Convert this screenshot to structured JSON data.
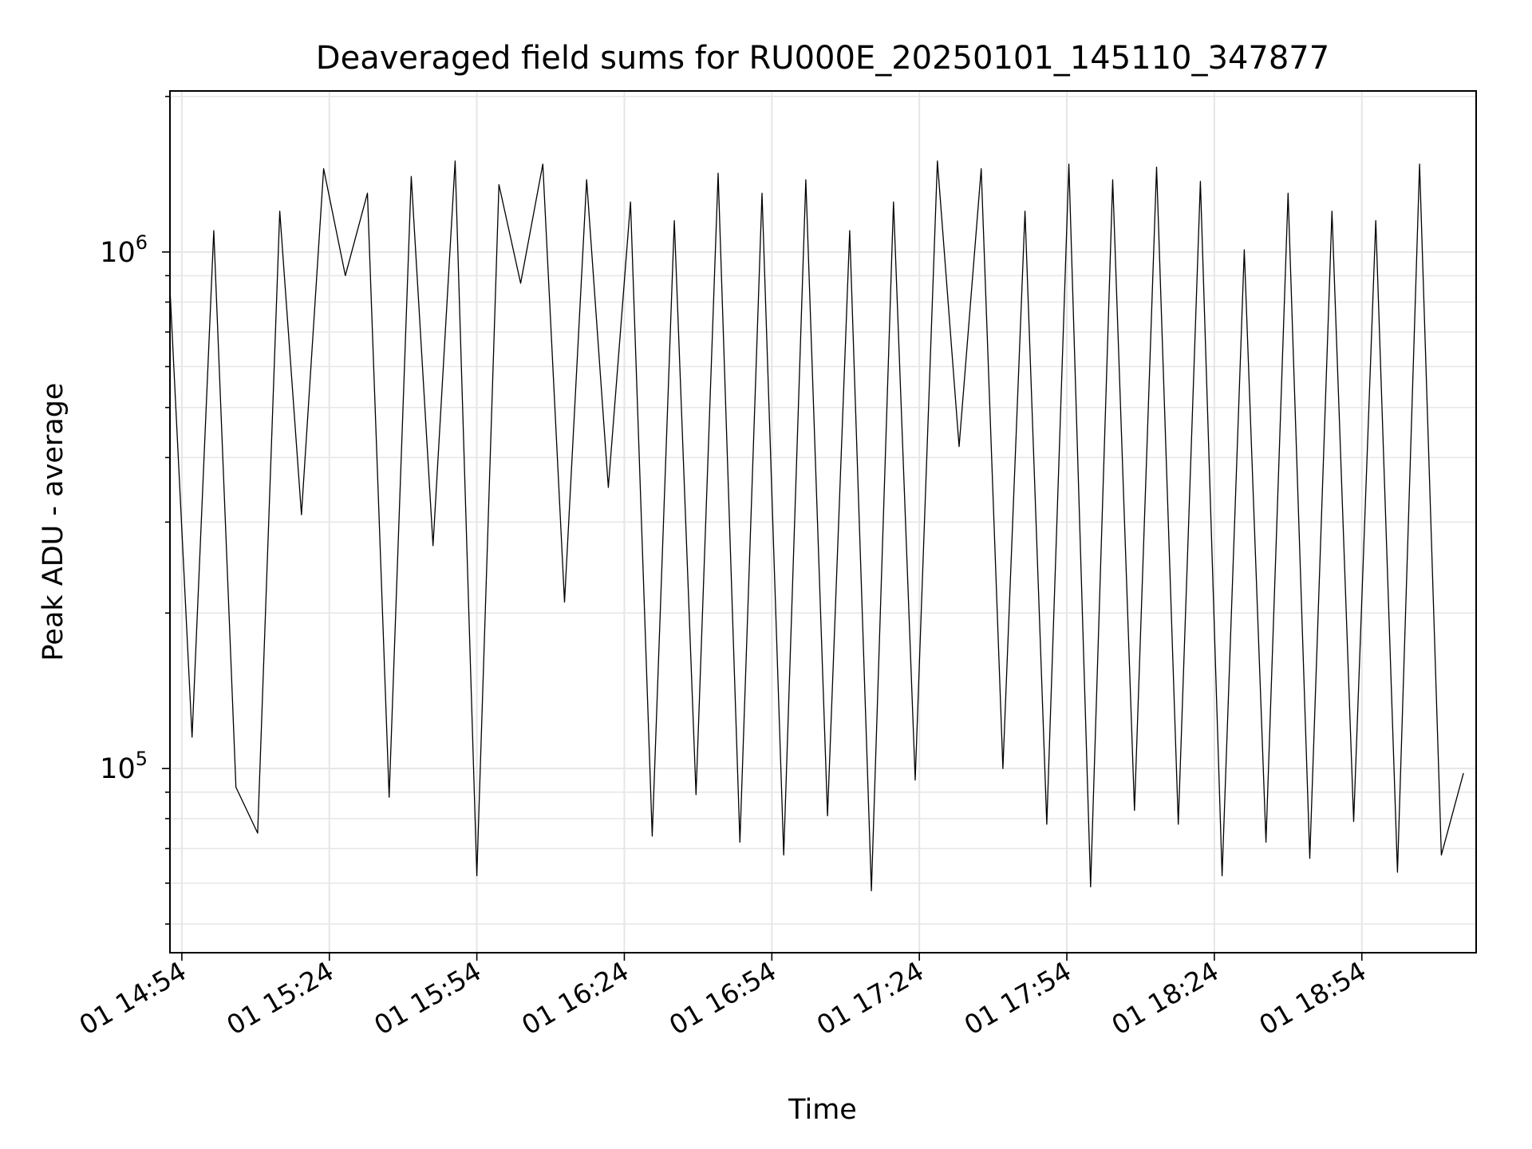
{
  "chart_data": {
    "type": "line",
    "title": "Deaveraged field sums for RU000E_20250101_145110_347877",
    "xlabel": "Time",
    "ylabel": "Peak ADU - average",
    "x_ticks": [
      "01 14:54",
      "01 15:24",
      "01 15:54",
      "01 16:24",
      "01 16:54",
      "01 17:24",
      "01 17:54",
      "01 18:24",
      "01 18:54"
    ],
    "y_ticks": [
      {
        "value": 100000,
        "base": "10",
        "exp": "5"
      },
      {
        "value": 1000000,
        "base": "10",
        "exp": "6"
      }
    ],
    "yscale": "log",
    "ylim": [
      44000,
      2050000
    ],
    "xlim": [
      "2025-01-01 14:51:35",
      "2025-01-01 19:17:15"
    ],
    "grid": true,
    "line_color": "#000000",
    "series": [
      {
        "x": [
          "2025-01-01 14:51:35",
          "2025-01-01 14:56:05",
          "2025-01-01 15:00:30",
          "2025-01-01 15:05:00",
          "2025-01-01 15:09:25",
          "2025-01-01 15:13:55",
          "2025-01-01 15:18:20",
          "2025-01-01 15:22:50",
          "2025-01-01 15:27:15",
          "2025-01-01 15:31:45",
          "2025-01-01 15:36:10",
          "2025-01-01 15:40:40",
          "2025-01-01 15:45:05",
          "2025-01-01 15:49:35",
          "2025-01-01 15:54:00",
          "2025-01-01 15:58:30",
          "2025-01-01 16:02:55",
          "2025-01-01 16:07:25",
          "2025-01-01 16:11:50",
          "2025-01-01 16:16:20",
          "2025-01-01 16:20:45",
          "2025-01-01 16:25:15",
          "2025-01-01 16:29:40",
          "2025-01-01 16:34:10",
          "2025-01-01 16:38:35",
          "2025-01-01 16:43:05",
          "2025-01-01 16:47:30",
          "2025-01-01 16:52:00",
          "2025-01-01 16:56:25",
          "2025-01-01 17:00:55",
          "2025-01-01 17:05:20",
          "2025-01-01 17:09:50",
          "2025-01-01 17:14:15",
          "2025-01-01 17:18:45",
          "2025-01-01 17:23:10",
          "2025-01-01 17:27:40",
          "2025-01-01 17:32:05",
          "2025-01-01 17:36:35",
          "2025-01-01 17:41:00",
          "2025-01-01 17:45:30",
          "2025-01-01 17:49:55",
          "2025-01-01 17:54:25",
          "2025-01-01 17:58:50",
          "2025-01-01 18:03:20",
          "2025-01-01 18:07:45",
          "2025-01-01 18:12:15",
          "2025-01-01 18:16:40",
          "2025-01-01 18:21:10",
          "2025-01-01 18:25:35",
          "2025-01-01 18:30:05",
          "2025-01-01 18:34:30",
          "2025-01-01 18:39:00",
          "2025-01-01 18:43:25",
          "2025-01-01 18:47:55",
          "2025-01-01 18:52:20",
          "2025-01-01 18:56:50",
          "2025-01-01 19:01:15",
          "2025-01-01 19:05:45",
          "2025-01-01 19:10:10",
          "2025-01-01 19:14:40"
        ],
        "values": [
          850000,
          115000,
          1100000,
          92000,
          75000,
          1200000,
          310000,
          1450000,
          900000,
          1300000,
          88000,
          1400000,
          270000,
          1500000,
          62000,
          1350000,
          870000,
          1480000,
          210000,
          1380000,
          350000,
          1250000,
          74000,
          1150000,
          89000,
          1420000,
          72000,
          1300000,
          68000,
          1380000,
          81000,
          1100000,
          58000,
          1250000,
          95000,
          1500000,
          420000,
          1450000,
          100000,
          1200000,
          78000,
          1480000,
          59000,
          1380000,
          83000,
          1460000,
          78000,
          1370000,
          62000,
          1010000,
          72000,
          1300000,
          67000,
          1200000,
          79000,
          1150000,
          63000,
          1480000,
          68000,
          98000
        ]
      }
    ]
  }
}
